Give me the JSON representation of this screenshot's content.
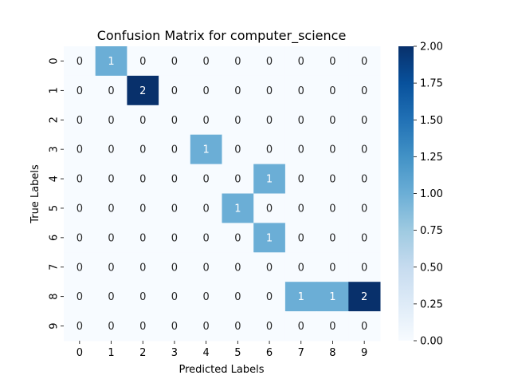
{
  "chart_data": {
    "type": "heatmap",
    "title": "Confusion Matrix for computer_science",
    "xlabel": "Predicted Labels",
    "ylabel": "True Labels",
    "x_categories": [
      "0",
      "1",
      "2",
      "3",
      "4",
      "5",
      "6",
      "7",
      "8",
      "9"
    ],
    "y_categories": [
      "0",
      "1",
      "2",
      "3",
      "4",
      "5",
      "6",
      "7",
      "8",
      "9"
    ],
    "values": [
      [
        0,
        1,
        0,
        0,
        0,
        0,
        0,
        0,
        0,
        0
      ],
      [
        0,
        0,
        2,
        0,
        0,
        0,
        0,
        0,
        0,
        0
      ],
      [
        0,
        0,
        0,
        0,
        0,
        0,
        0,
        0,
        0,
        0
      ],
      [
        0,
        0,
        0,
        0,
        1,
        0,
        0,
        0,
        0,
        0
      ],
      [
        0,
        0,
        0,
        0,
        0,
        0,
        1,
        0,
        0,
        0
      ],
      [
        0,
        0,
        0,
        0,
        0,
        1,
        0,
        0,
        0,
        0
      ],
      [
        0,
        0,
        0,
        0,
        0,
        0,
        1,
        0,
        0,
        0
      ],
      [
        0,
        0,
        0,
        0,
        0,
        0,
        0,
        0,
        0,
        0
      ],
      [
        0,
        0,
        0,
        0,
        0,
        0,
        0,
        1,
        1,
        2
      ],
      [
        0,
        0,
        0,
        0,
        0,
        0,
        0,
        0,
        0,
        0
      ]
    ],
    "colormap": "Blues",
    "colors": {
      "low": "#f7fbff",
      "mid": "#6baed6",
      "high": "#08306b"
    },
    "colorbar": {
      "range": [
        0,
        2
      ],
      "ticks": [
        "0.00",
        "0.25",
        "0.50",
        "0.75",
        "1.00",
        "1.25",
        "1.50",
        "1.75",
        "2.00"
      ]
    }
  }
}
